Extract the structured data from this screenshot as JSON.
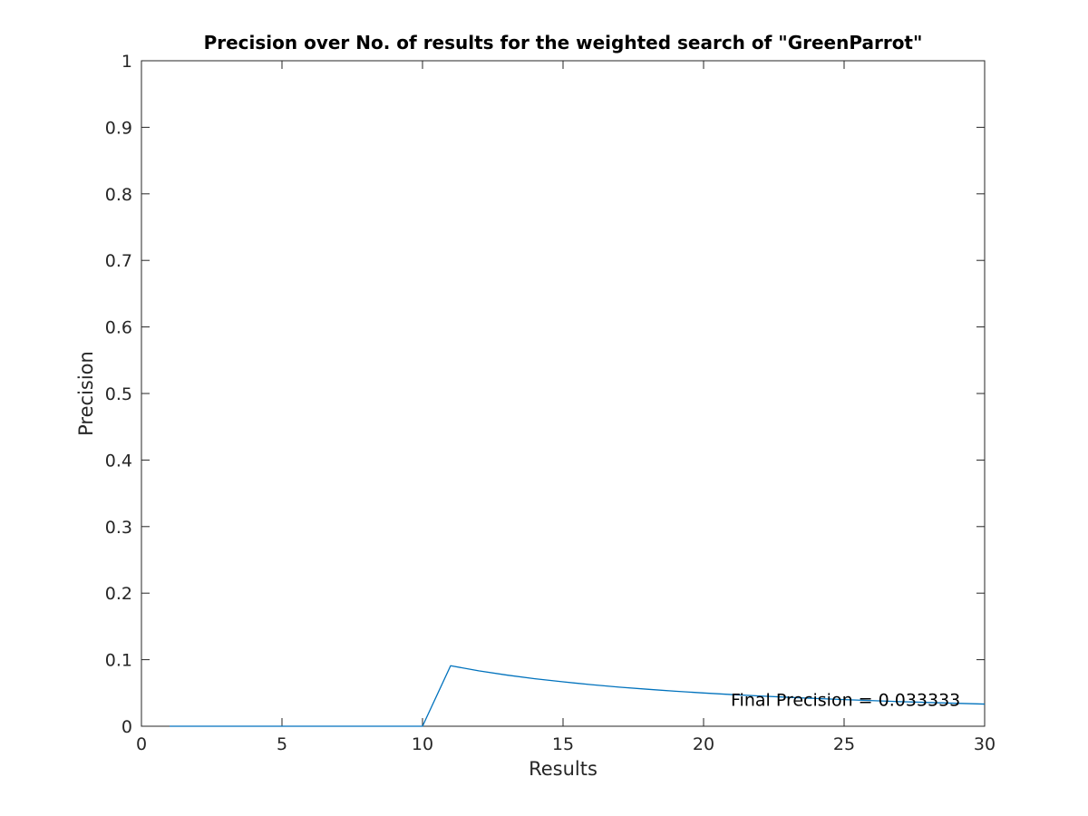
{
  "chart_data": {
    "type": "line",
    "title": "Precision over No. of results for the weighted search of \"GreenParrot\"",
    "xlabel": "Results",
    "ylabel": "Precision",
    "xlim": [
      0,
      30
    ],
    "ylim": [
      0,
      1
    ],
    "xticks": [
      "0",
      "5",
      "10",
      "15",
      "20",
      "25",
      "30"
    ],
    "yticks": [
      "0",
      "0.1",
      "0.2",
      "0.3",
      "0.4",
      "0.5",
      "0.6",
      "0.7",
      "0.8",
      "0.9",
      "1"
    ],
    "grid": false,
    "series": [
      {
        "color": "#0072bd",
        "x": [
          1,
          2,
          3,
          4,
          5,
          6,
          7,
          8,
          9,
          10,
          11,
          12,
          13,
          14,
          15,
          16,
          17,
          18,
          19,
          20,
          21,
          22,
          23,
          24,
          25,
          26,
          27,
          28,
          29,
          30
        ],
        "y": [
          0,
          0,
          0,
          0,
          0,
          0,
          0,
          0,
          0,
          0,
          0.0909,
          0.0833,
          0.0769,
          0.0714,
          0.0667,
          0.0625,
          0.0588,
          0.0556,
          0.0526,
          0.05,
          0.0476,
          0.0455,
          0.0435,
          0.0417,
          0.04,
          0.0385,
          0.037,
          0.0357,
          0.0345,
          0.0333
        ]
      }
    ],
    "annotations": [
      {
        "text": "Final Precision = 0.033333",
        "x": 21,
        "y": 0.0333
      }
    ]
  }
}
